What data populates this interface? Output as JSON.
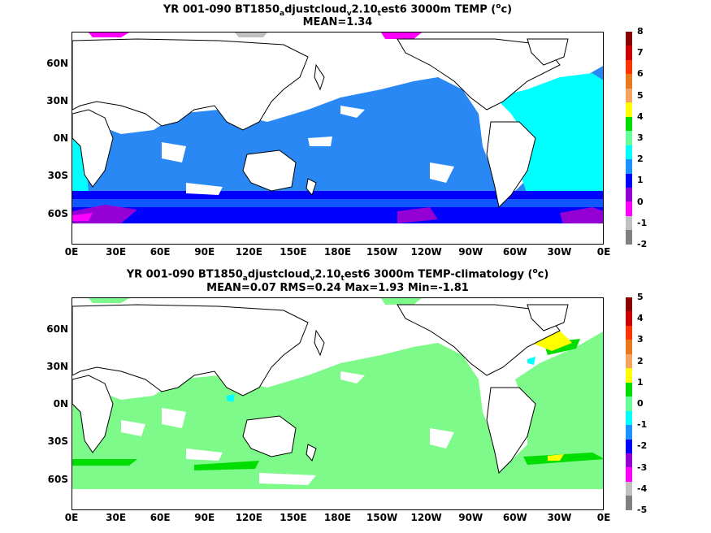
{
  "panel1": {
    "title_parts": [
      "YR 001-090 BT1850",
      "a",
      "djustcloud",
      "v",
      "2.10",
      "t",
      "est6 3000m TEMP (",
      "o",
      "c)"
    ],
    "subtitle": "MEAN=1.34",
    "colorbar_labels": [
      "8",
      "7",
      "6",
      "5",
      "4",
      "3",
      "2",
      "1",
      "0",
      "-1",
      "-2"
    ],
    "colorbar_colors": [
      "#8b0000",
      "#cc0000",
      "#ff3300",
      "#e8781e",
      "#f4a460",
      "#ffff00",
      "#00dd00",
      "#66ff99",
      "#00ffff",
      "#1e90ff",
      "#0000ff",
      "#9400d3",
      "#ff00ff",
      "#c0c0c0",
      "#808080"
    ],
    "ocean_color": "#2a88f5"
  },
  "panel2": {
    "title_parts": [
      "YR 001-090 BT1850",
      "a",
      "djustcloud",
      "v",
      "2.10",
      "t",
      "est6 3000m TEMP-climatology (",
      "o",
      "c)"
    ],
    "subtitle": "MEAN=0.07   RMS=0.24   Max=1.93   Min=-1.81",
    "colorbar_labels": [
      "5",
      "4",
      "3",
      "2",
      "1",
      "0",
      "-1",
      "-2",
      "-3",
      "-4",
      "-5"
    ],
    "colorbar_colors": [
      "#8b0000",
      "#cc0000",
      "#ff3300",
      "#e8781e",
      "#f4a460",
      "#ffff00",
      "#00dd00",
      "#66ff99",
      "#00ffff",
      "#1e90ff",
      "#0000ff",
      "#9400d3",
      "#ff00ff",
      "#c0c0c0",
      "#808080"
    ],
    "ocean_color": "#7dfa8a"
  },
  "y_ticks": [
    "60N",
    "30N",
    "0N",
    "30S",
    "60S"
  ],
  "x_ticks": [
    "0E",
    "30E",
    "60E",
    "90E",
    "120E",
    "150E",
    "180E",
    "150W",
    "120W",
    "90W",
    "60W",
    "30W",
    "0E"
  ]
}
